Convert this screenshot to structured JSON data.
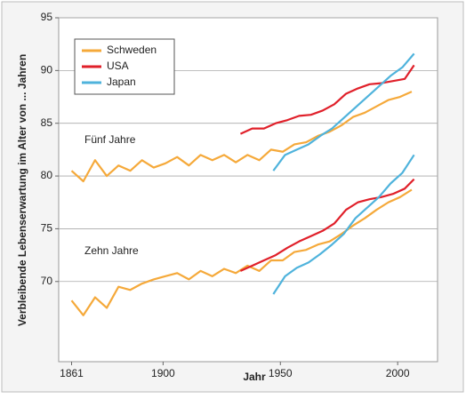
{
  "chart_data": {
    "type": "line",
    "x_label": "Jahr",
    "y_label": "Verbleibende Lebenserwartung im Alter von ... Jahren",
    "groups": [
      "Fünf Jahre",
      "Zehn Jahre"
    ],
    "xlim": [
      1855.5,
      2017
    ],
    "xticks": [
      1861,
      1900,
      1950,
      2000
    ],
    "ylim": [
      62.4,
      95
    ],
    "yticks": [
      70,
      75,
      80,
      85,
      90,
      95
    ],
    "grid": true,
    "legend": "top-left",
    "series": [
      {
        "name": "Schweden",
        "color": "#f5a93a",
        "x": [
          1861,
          1866,
          1871,
          1876,
          1881,
          1886,
          1891,
          1896,
          1901,
          1906,
          1911,
          1916,
          1921,
          1926,
          1931,
          1936,
          1941,
          1946,
          1951,
          1956,
          1961,
          1966,
          1971,
          1976,
          1981,
          1986,
          1991,
          1996,
          2001,
          2006
        ],
        "values": [
          [
            80.5,
            79.5,
            81.5,
            80,
            81,
            80.5,
            81.5,
            80.8,
            81.2,
            81.8,
            81,
            82,
            81.5,
            82,
            81.3,
            82,
            81.5,
            82.5,
            82.3,
            83,
            83.2,
            83.8,
            84.2,
            84.8,
            85.6,
            86,
            86.6,
            87.2,
            87.5,
            88
          ],
          [
            68.2,
            66.8,
            68.5,
            67.5,
            69.5,
            69.2,
            69.8,
            70.2,
            70.5,
            70.8,
            70.2,
            71,
            70.5,
            71.2,
            70.8,
            71.5,
            71,
            72,
            72,
            72.8,
            73,
            73.5,
            73.8,
            74.5,
            75.3,
            76,
            76.8,
            77.5,
            78,
            78.7
          ]
        ]
      },
      {
        "name": "USA",
        "color": "#e0202a",
        "x": [
          1933,
          1938,
          1943,
          1948,
          1953,
          1958,
          1963,
          1968,
          1973,
          1978,
          1983,
          1988,
          1993,
          1998,
          2003,
          2007
        ],
        "values": [
          [
            84,
            84.5,
            84.5,
            85,
            85.3,
            85.7,
            85.8,
            86.2,
            86.8,
            87.8,
            88.3,
            88.7,
            88.8,
            89,
            89.2,
            90.5
          ],
          [
            71,
            71.5,
            72,
            72.5,
            73.2,
            73.8,
            74.3,
            74.8,
            75.5,
            76.8,
            77.5,
            77.8,
            78,
            78.3,
            78.8,
            79.7
          ]
        ]
      },
      {
        "name": "Japan",
        "color": "#4fb3dc",
        "x": [
          1947,
          1952,
          1957,
          1962,
          1967,
          1972,
          1977,
          1982,
          1987,
          1992,
          1997,
          2002,
          2007
        ],
        "values": [
          [
            80.5,
            82,
            82.5,
            83,
            83.8,
            84.5,
            85.5,
            86.5,
            87.5,
            88.5,
            89.5,
            90.3,
            91.6
          ],
          [
            68.8,
            70.5,
            71.3,
            71.8,
            72.6,
            73.5,
            74.5,
            76,
            77,
            78,
            79.3,
            80.3,
            82
          ]
        ]
      }
    ]
  }
}
